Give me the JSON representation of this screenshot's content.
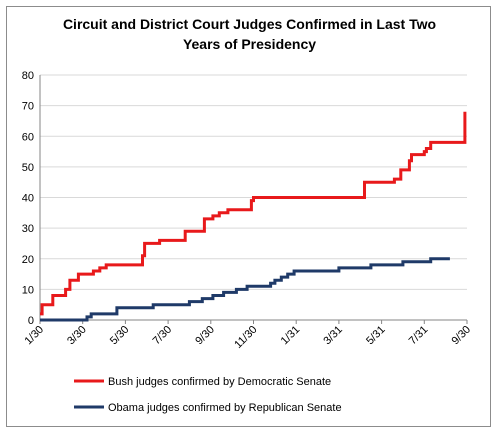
{
  "chart_data": {
    "type": "line",
    "title_line1": "Circuit and District Court Judges Confirmed in Last Two",
    "title_line2": "Years of Presidency",
    "x_ticks": [
      "1/30",
      "3/30",
      "5/30",
      "7/30",
      "9/30",
      "11/30",
      "1/31",
      "3/31",
      "5/31",
      "7/31",
      "9/30"
    ],
    "y_ticks": [
      "0",
      "10",
      "20",
      "30",
      "40",
      "50",
      "60",
      "70",
      "80"
    ],
    "ylim": [
      0,
      80
    ],
    "xlim_months": [
      0,
      20
    ],
    "grid": true,
    "legend_position": "bottom",
    "series": [
      {
        "name": "Bush judges confirmed by Democratic Senate",
        "color": "#e8191b",
        "points": [
          [
            0.0,
            2
          ],
          [
            0.1,
            5
          ],
          [
            0.6,
            8
          ],
          [
            1.2,
            10
          ],
          [
            1.4,
            13
          ],
          [
            1.8,
            15
          ],
          [
            2.5,
            16
          ],
          [
            2.8,
            17
          ],
          [
            3.1,
            18
          ],
          [
            4.8,
            21
          ],
          [
            4.9,
            25
          ],
          [
            5.6,
            26
          ],
          [
            6.8,
            29
          ],
          [
            7.7,
            33
          ],
          [
            8.1,
            34
          ],
          [
            8.4,
            35
          ],
          [
            8.8,
            36
          ],
          [
            9.9,
            39
          ],
          [
            10.0,
            40
          ],
          [
            15.2,
            45
          ],
          [
            16.6,
            46
          ],
          [
            16.9,
            49
          ],
          [
            17.3,
            52
          ],
          [
            17.4,
            54
          ],
          [
            18.0,
            55
          ],
          [
            18.1,
            56
          ],
          [
            18.3,
            58
          ],
          [
            19.9,
            68
          ]
        ]
      },
      {
        "name": "Obama judges confirmed by Republican Senate",
        "color": "#1f3a68",
        "points": [
          [
            0.0,
            0
          ],
          [
            2.1,
            0
          ],
          [
            2.2,
            1
          ],
          [
            2.4,
            2
          ],
          [
            3.6,
            4
          ],
          [
            5.3,
            5
          ],
          [
            7.0,
            6
          ],
          [
            7.6,
            7
          ],
          [
            8.1,
            8
          ],
          [
            8.6,
            9
          ],
          [
            9.2,
            10
          ],
          [
            9.7,
            11
          ],
          [
            10.8,
            12
          ],
          [
            11.0,
            13
          ],
          [
            11.3,
            14
          ],
          [
            11.6,
            15
          ],
          [
            11.9,
            16
          ],
          [
            13.8,
            16
          ],
          [
            14.0,
            17
          ],
          [
            15.1,
            17
          ],
          [
            15.5,
            18
          ],
          [
            16.6,
            18
          ],
          [
            17.0,
            19
          ],
          [
            18.0,
            19
          ],
          [
            18.3,
            20
          ],
          [
            19.2,
            20
          ]
        ]
      }
    ]
  }
}
